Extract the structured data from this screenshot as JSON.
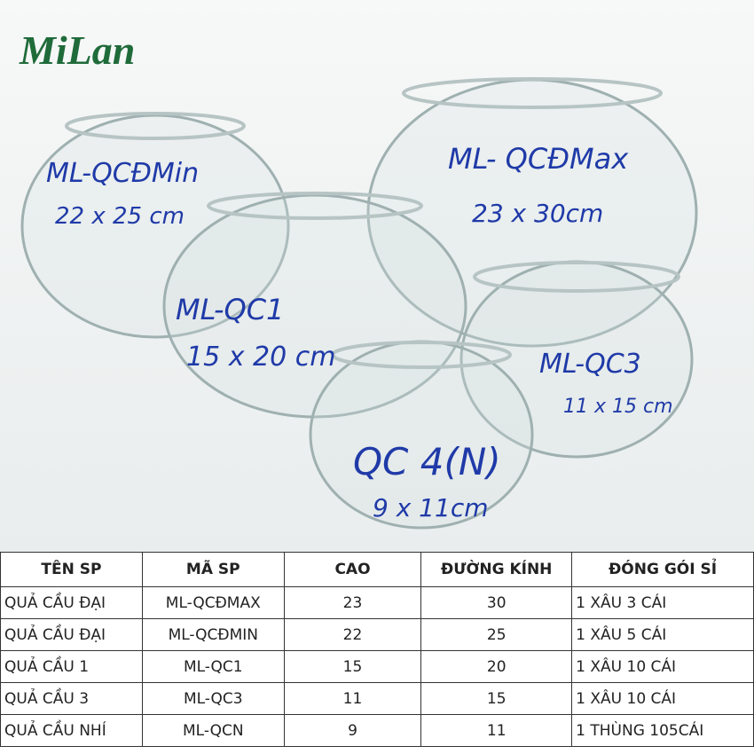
{
  "logo": "MiLan",
  "photo": {
    "labels": [
      {
        "code": "ML-QCĐMin",
        "size": "22 x 25 cm"
      },
      {
        "code": "ML- QCĐMax",
        "size": "23 x 30cm"
      },
      {
        "code": "ML-QC1",
        "size": "15 x 20 cm"
      },
      {
        "code": "ML-QC3",
        "size": "11 x 15 cm"
      },
      {
        "code": "QC 4(N)",
        "size": "9 x 11cm"
      }
    ]
  },
  "table": {
    "header": [
      "TÊN SP",
      "MÃ SP",
      "CAO",
      "ĐƯỜNG KÍNH",
      "ĐÓNG GÓI SỈ"
    ],
    "rows": [
      [
        "QUẢ CẦU ĐẠI",
        "ML-QCĐMAX",
        "23",
        "30",
        "1 XÂU 3 CÁI"
      ],
      [
        "QUẢ CẦU ĐẠI",
        "ML-QCĐMIN",
        "22",
        "25",
        "1 XÂU 5 CÁI"
      ],
      [
        "QUẢ CẦU 1",
        "ML-QC1",
        "15",
        "20",
        "1 XÂU 10 CÁI"
      ],
      [
        "QUẢ CẦU 3",
        "ML-QC3",
        "11",
        "15",
        "1 XÂU 10 CÁI"
      ],
      [
        "QUẢ CẦU NHÍ",
        "ML-QCN",
        "9",
        "11",
        "1 THÙNG 105CÁI"
      ]
    ]
  }
}
